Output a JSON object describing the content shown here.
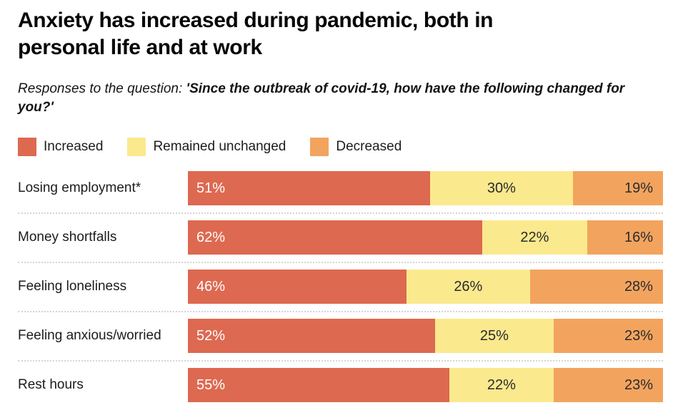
{
  "header": {
    "title": "Anxiety has increased during pandemic, both in personal life and at work",
    "subtitle_prefix": "Responses to the question: ",
    "subtitle_quote": "'Since the outbreak of covid-19, how have the following changed for you?'"
  },
  "chart_data": {
    "type": "bar",
    "orientation": "horizontal_stacked",
    "title": "Anxiety has increased during pandemic, both in personal life and at work",
    "categories": [
      "Losing employment*",
      "Money shortfalls",
      "Feeling loneliness",
      "Feeling anxious/worried",
      "Rest hours"
    ],
    "series": [
      {
        "name": "Increased",
        "color": "#dd6950",
        "values": [
          51,
          62,
          46,
          52,
          55
        ]
      },
      {
        "name": "Remained unchanged",
        "color": "#fbe98e",
        "values": [
          30,
          22,
          26,
          25,
          22
        ]
      },
      {
        "name": "Decreased",
        "color": "#f2a45f",
        "values": [
          19,
          16,
          28,
          23,
          23
        ]
      }
    ],
    "value_suffix": "%",
    "xlim": [
      0,
      100
    ],
    "legend_position": "top",
    "grid": false,
    "separator_color": "#d4d4d4",
    "value_label_color_on_increased": "#ffffff",
    "value_label_color_default": "#2b2b2b"
  }
}
